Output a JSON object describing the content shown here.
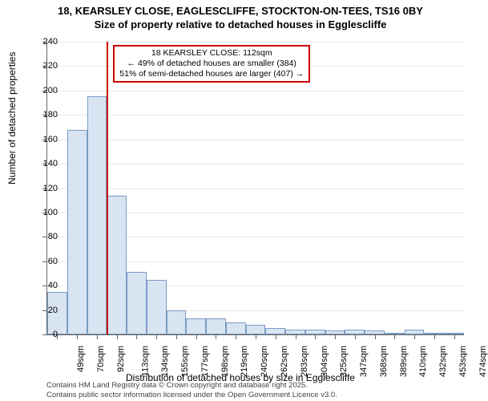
{
  "title_line1": "18, KEARSLEY CLOSE, EAGLESCLIFFE, STOCKTON-ON-TEES, TS16 0BY",
  "title_line2": "Size of property relative to detached houses in Egglescliffe",
  "y_axis_label": "Number of detached properties",
  "x_axis_label": "Distribution of detached houses by size in Egglescliffe",
  "footer_line1": "Contains HM Land Registry data © Crown copyright and database right 2025.",
  "footer_line2": "Contains public sector information licensed under the Open Government Licence v3.0.",
  "annotation": {
    "line1": "18 KEARSLEY CLOSE: 112sqm",
    "line2": "← 49% of detached houses are smaller (384)",
    "line3": "51% of semi-detached houses are larger (407) →"
  },
  "chart": {
    "type": "histogram",
    "ylim": [
      0,
      240
    ],
    "ytick_step": 20,
    "yticks": [
      0,
      20,
      40,
      60,
      80,
      100,
      120,
      140,
      160,
      180,
      200,
      220,
      240
    ],
    "x_categories": [
      "49sqm",
      "70sqm",
      "92sqm",
      "113sqm",
      "134sqm",
      "155sqm",
      "177sqm",
      "198sqm",
      "219sqm",
      "240sqm",
      "262sqm",
      "283sqm",
      "304sqm",
      "325sqm",
      "347sqm",
      "368sqm",
      "389sqm",
      "410sqm",
      "432sqm",
      "453sqm",
      "474sqm"
    ],
    "values": [
      35,
      168,
      195,
      114,
      51,
      45,
      20,
      13,
      13,
      10,
      8,
      5,
      4,
      4,
      3,
      4,
      3,
      0,
      4,
      0,
      0
    ],
    "bar_fill": "#d9e4f2",
    "bar_stroke": "#7a9bc4",
    "grid_color": "#e8e8e8",
    "background_color": "#ffffff",
    "ref_line_color": "#cc0000",
    "ref_line_x_index": 3,
    "title_fontsize": 13,
    "label_fontsize": 12,
    "tick_fontsize": 11,
    "annotation_fontsize": 10.5
  }
}
